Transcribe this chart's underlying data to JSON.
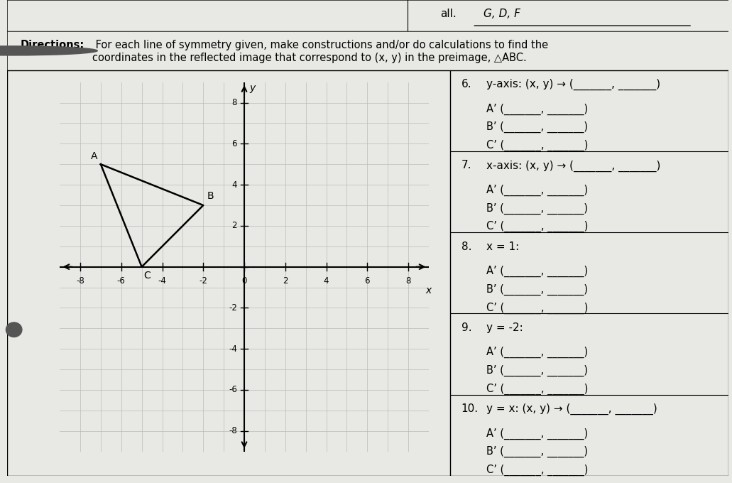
{
  "triangle": {
    "A": [
      -7,
      5
    ],
    "B": [
      -2,
      3
    ],
    "C": [
      -5,
      0
    ]
  },
  "axis_range": [
    -9,
    9,
    -9,
    9
  ],
  "grid_ticks_labeled": [
    -8,
    -6,
    -4,
    -2,
    2,
    4,
    6,
    8
  ],
  "questions": [
    {
      "num": "6.",
      "header": "y-axis: (x, y) → (_______, _______)",
      "sub": [
        "A’ (_______, _______)",
        "B’ (_______, _______)",
        "C’ (_______, _______)"
      ]
    },
    {
      "num": "7.",
      "header": "x-axis: (x, y) → (_______, _______)",
      "sub": [
        "A’ (_______, _______)",
        "B’ (_______, _______)",
        "C’ (_______, _______)"
      ]
    },
    {
      "num": "8.",
      "header": "x = 1:",
      "sub": [
        "A’ (_______, _______)",
        "B’ (_______, _______)",
        "C’ (_______, _______)"
      ]
    },
    {
      "num": "9.",
      "header": "y = -2:",
      "sub": [
        "A’ (_______, _______)",
        "B’ (_______, _______)",
        "C’ (_______, _______)"
      ]
    },
    {
      "num": "10.",
      "header": "y = x: (x, y) → (_______, _______)",
      "sub": [
        "A’ (_______, _______)",
        "B’ (_______, _______)",
        "C’ (_______, _______)"
      ]
    }
  ],
  "bg_color": "#e8e8e4",
  "paper_color": "#f0eeea",
  "grid_color": "#bbbbbb",
  "directions_bold": "Directions:",
  "directions_normal": " For each line of symmetry given, make constructions and/or do calculations to find the\ncoordinates in the reflected image that correspond to (x, y) in the preimage, △ABC.",
  "top_label_left": "all.",
  "top_label_right": "G, D, F",
  "font_size_dir": 10.5,
  "font_size_q_header": 11,
  "font_size_q_sub": 10.5,
  "font_size_tick": 8.5,
  "font_size_axis_label": 10
}
